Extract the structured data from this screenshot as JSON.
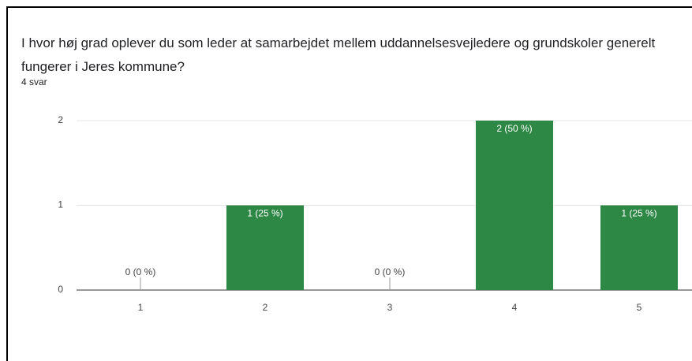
{
  "chart_data": {
    "type": "bar",
    "title": "I hvor høj grad oplever du som leder at samarbejdet mellem uddannelsesvejledere og grundskoler generelt fungerer i Jeres kommune?",
    "subtitle": "4 svar",
    "categories": [
      "1",
      "2",
      "3",
      "4",
      "5"
    ],
    "values": [
      0,
      1,
      0,
      2,
      1
    ],
    "value_labels": [
      "0 (0 %)",
      "1 (25 %)",
      "0 (0 %)",
      "2 (50 %)",
      "1 (25 %)"
    ],
    "color": "#2d8745",
    "ylim": [
      0,
      2
    ],
    "yticks": [
      0,
      1,
      2
    ],
    "grid": true
  }
}
